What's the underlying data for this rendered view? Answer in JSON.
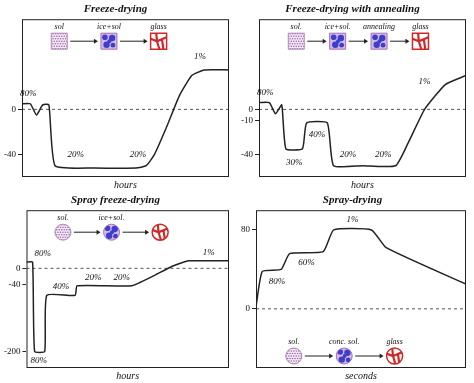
{
  "chart_data": [
    {
      "type": "line",
      "title": "Freeze-drying",
      "x_label": "hours",
      "stages": [
        "sol",
        "ice+sol",
        "glass"
      ],
      "xlim": [
        0,
        100
      ],
      "ylim": [
        -60,
        80
      ],
      "yticks": [
        -40,
        0
      ],
      "x": [
        0,
        4,
        7,
        10,
        13,
        16,
        35,
        55,
        60,
        64,
        70,
        76,
        82,
        88,
        100
      ],
      "values": [
        5,
        5,
        -5,
        4,
        4,
        -50,
        -52,
        -52,
        -50,
        -40,
        -15,
        12,
        30,
        35,
        35
      ],
      "color": "#222222",
      "line_style": "solid",
      "reference_line": 0,
      "annotations": [
        {
          "text": "80%",
          "x": 3,
          "y": 14
        },
        {
          "text": "20%",
          "x": 26,
          "y": -40
        },
        {
          "text": "20%",
          "x": 56,
          "y": -40
        },
        {
          "text": "1%",
          "x": 86,
          "y": 47
        }
      ],
      "grid": false,
      "tick_labels": "y"
    },
    {
      "type": "line",
      "title": "Freeze-drying with annealing",
      "x_label": "hours",
      "stages": [
        "sol.",
        "ice+sol.",
        "annealing",
        "glass"
      ],
      "xlim": [
        0,
        100
      ],
      "ylim": [
        -60,
        80
      ],
      "yticks": [
        -40,
        -10,
        0
      ],
      "x": [
        0,
        5,
        8,
        11,
        13,
        21,
        23,
        33,
        36,
        50,
        66,
        72,
        80,
        90,
        100
      ],
      "values": [
        6,
        6,
        -4,
        4,
        -35,
        -35,
        -12,
        -12,
        -50,
        -50,
        -50,
        -30,
        0,
        22,
        30
      ],
      "color": "#222222",
      "line_style": "solid",
      "reference_line": 0,
      "annotations": [
        {
          "text": "80%",
          "x": 3,
          "y": 15
        },
        {
          "text": "30%",
          "x": 17,
          "y": -47
        },
        {
          "text": "40%",
          "x": 28,
          "y": -22
        },
        {
          "text": "20%",
          "x": 43,
          "y": -40
        },
        {
          "text": "20%",
          "x": 60,
          "y": -40
        },
        {
          "text": "1%",
          "x": 80,
          "y": 25
        }
      ],
      "grid": false,
      "tick_labels": "y"
    },
    {
      "type": "line",
      "title": "Spray freeze-drying",
      "x_label": "hours",
      "stages": [
        "sol.",
        "ice+sol.",
        null
      ],
      "xlim": [
        0,
        100
      ],
      "ylim": [
        -240,
        140
      ],
      "yticks": [
        -200,
        -40,
        0
      ],
      "x": [
        0,
        3,
        4,
        9,
        10,
        24,
        25,
        52,
        62,
        72,
        80,
        100
      ],
      "values": [
        15,
        15,
        -200,
        -200,
        -65,
        -65,
        -42,
        -42,
        -20,
        5,
        18,
        18
      ],
      "color": "#222222",
      "line_style": "solid",
      "reference_line": 0,
      "annotations": [
        {
          "text": "80%",
          "x": 8,
          "y": 35
        },
        {
          "text": "80%",
          "x": 6,
          "y": -222
        },
        {
          "text": "40%",
          "x": 17,
          "y": -45
        },
        {
          "text": "20%",
          "x": 33,
          "y": -22
        },
        {
          "text": "20%",
          "x": 47,
          "y": -22
        },
        {
          "text": "1%",
          "x": 90,
          "y": 38
        }
      ],
      "grid": false,
      "tick_labels": "y"
    },
    {
      "type": "line",
      "title": "Spray-drying",
      "x_label": "seconds",
      "stages": [
        "sol.",
        "conc. sol.",
        "glass"
      ],
      "xlim": [
        0,
        100
      ],
      "ylim": [
        -60,
        100
      ],
      "yticks": [
        0,
        80
      ],
      "x": [
        0,
        3,
        12,
        16,
        32,
        37,
        55,
        62,
        100
      ],
      "values": [
        2,
        38,
        40,
        56,
        58,
        80,
        80,
        62,
        25
      ],
      "color": "#222222",
      "line_style": "solid",
      "reference_line": 0,
      "annotations": [
        {
          "text": "80%",
          "x": 10,
          "y": 28
        },
        {
          "text": "60%",
          "x": 24,
          "y": 47
        },
        {
          "text": "1%",
          "x": 46,
          "y": 90
        }
      ],
      "grid": false,
      "tick_labels": "y"
    }
  ]
}
